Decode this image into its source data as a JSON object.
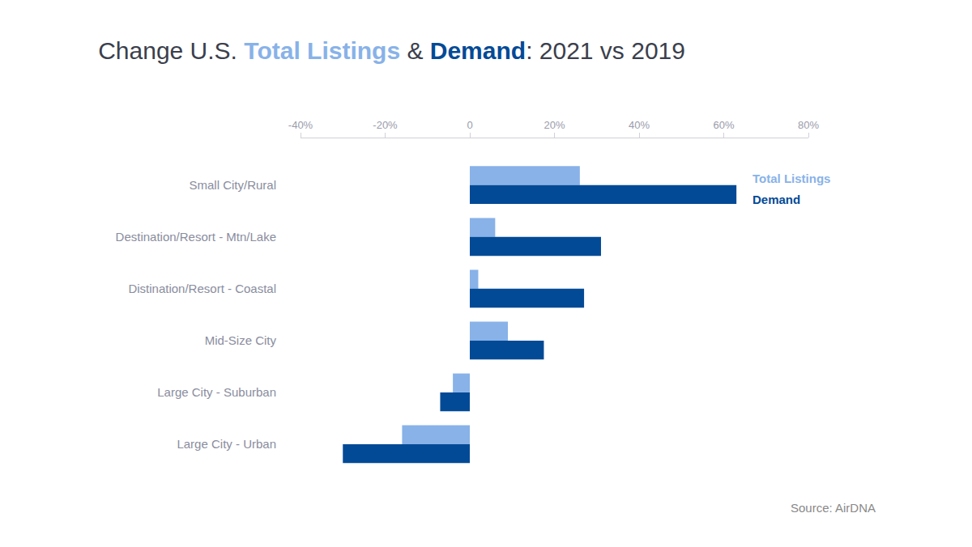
{
  "chart_data": {
    "type": "bar",
    "orientation": "horizontal",
    "title": "Change U.S. Total Listings & Demand: 2021 vs 2019",
    "source": "Source: AirDNA",
    "categories": [
      "Small City/Rural",
      "Destination/Resort - Mtn/Lake",
      "Distination/Resort - Coastal",
      "Mid-Size City",
      "Large City - Suburban",
      "Large City - Urban"
    ],
    "series": [
      {
        "name": "Total Listings",
        "color": "#88b2e8",
        "values": [
          26,
          6,
          2,
          9,
          -4,
          -16
        ]
      },
      {
        "name": "Demand",
        "color": "#034a96",
        "values": [
          63,
          31,
          27,
          17.5,
          -7,
          -30
        ]
      }
    ],
    "xlim": [
      -40,
      80
    ],
    "xticks": [
      {
        "value": -40,
        "label": "-40%"
      },
      {
        "value": -20,
        "label": "-20%"
      },
      0,
      {
        "value": 20,
        "label": "20%"
      },
      {
        "value": 40,
        "label": "40%"
      },
      {
        "value": 60,
        "label": "60%"
      },
      {
        "value": 80,
        "label": "80%"
      }
    ],
    "grid": false,
    "legend": "top right"
  }
}
